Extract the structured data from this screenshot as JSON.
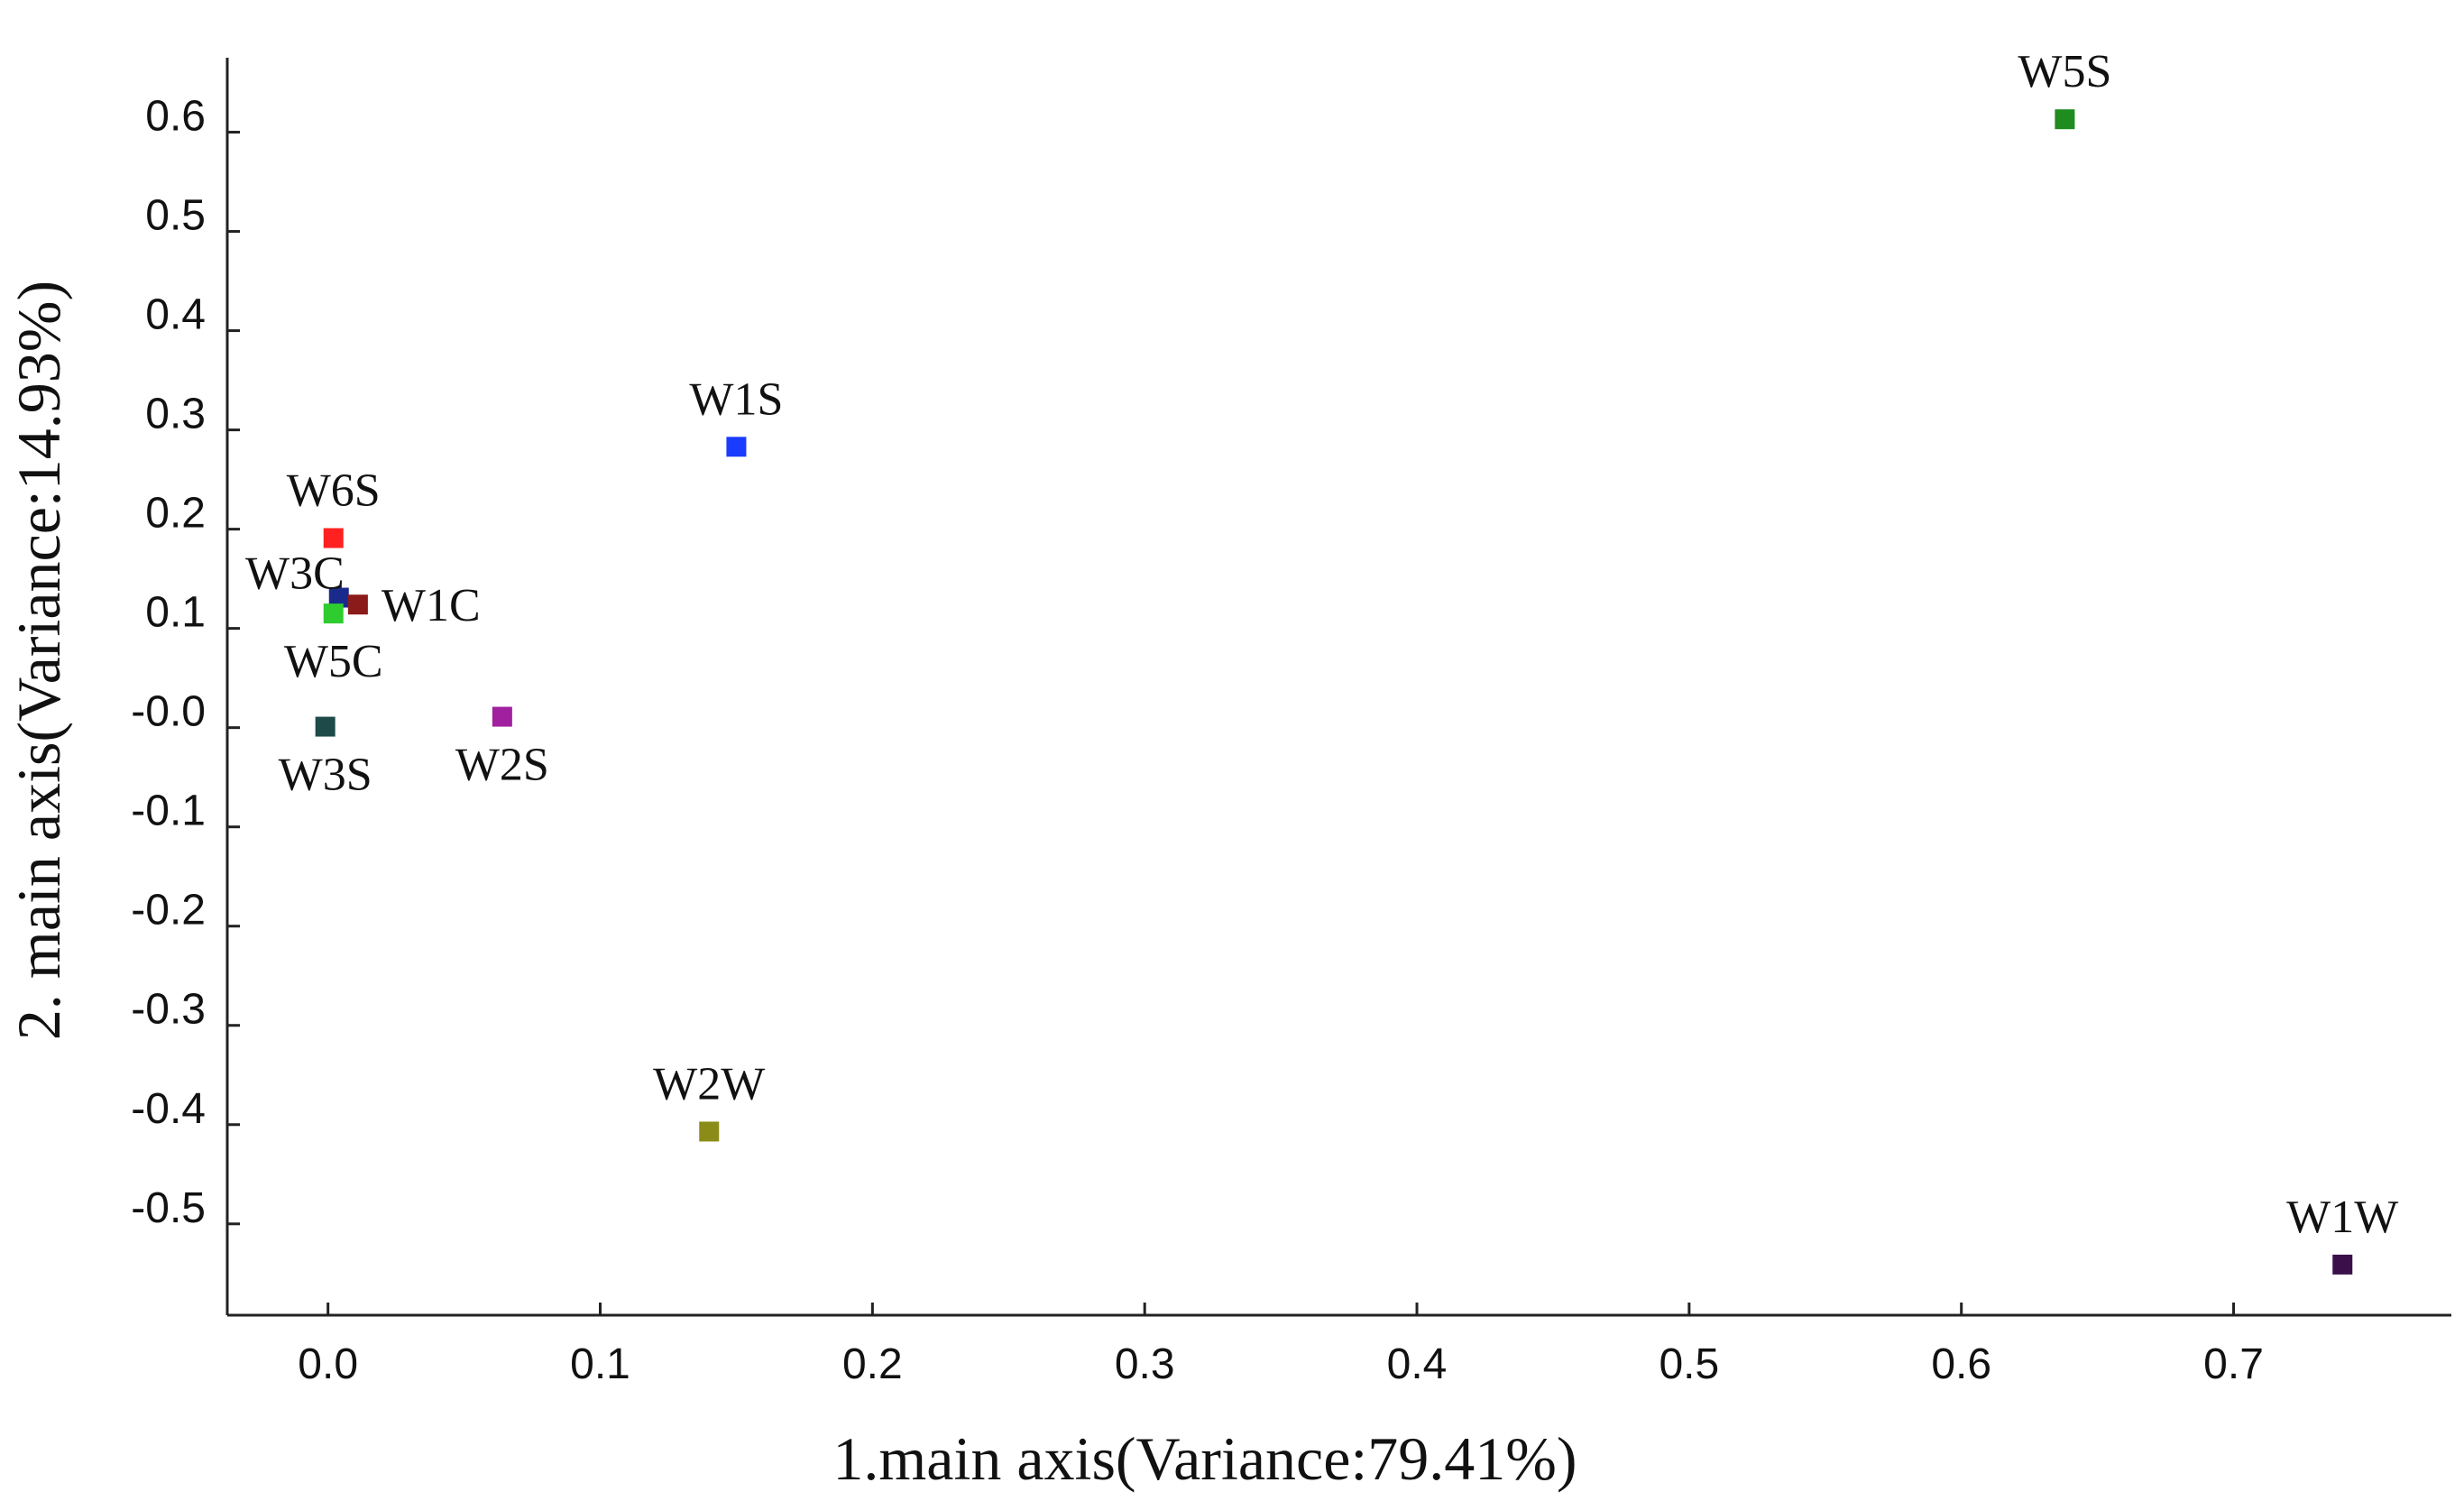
{
  "chart_data": {
    "type": "scatter",
    "title": "",
    "xlabel": "1.main axis(Variance:79.41%)",
    "ylabel": "2. main axis(Variance:14.93%)",
    "xlim": [
      -0.037,
      0.78
    ],
    "ylim": [
      -0.592,
      0.675
    ],
    "x_ticks": [
      0.0,
      0.1,
      0.2,
      0.3,
      0.4,
      0.5,
      0.6,
      0.7
    ],
    "x_tick_labels": [
      "0.0",
      "0.1",
      "0.2",
      "0.3",
      "0.4",
      "0.5",
      "0.6",
      "0.7"
    ],
    "y_ticks": [
      0.6,
      0.5,
      0.4,
      0.3,
      0.2,
      0.1,
      0.0,
      -0.1,
      -0.2,
      -0.3,
      -0.4,
      -0.5
    ],
    "y_tick_labels": [
      "0.6",
      "0.5",
      "0.4",
      "0.3",
      "0.2",
      "0.1",
      "-0.0",
      "-0.1",
      "-0.2",
      "-0.3",
      "-0.4",
      "-0.5"
    ],
    "grid": false,
    "legend": "none",
    "points": [
      {
        "label": "W5S",
        "x": 0.638,
        "y": 0.613,
        "color": "#1e8c1e",
        "label_pos": "above"
      },
      {
        "label": "W1S",
        "x": 0.15,
        "y": 0.283,
        "color": "#1a3cff",
        "label_pos": "above"
      },
      {
        "label": "W6S",
        "x": 0.002,
        "y": 0.191,
        "color": "#ff2020",
        "label_pos": "above"
      },
      {
        "label": "W3C",
        "x": 0.004,
        "y": 0.131,
        "color": "#1a2a8c",
        "label_pos": "left"
      },
      {
        "label": "W1C",
        "x": 0.011,
        "y": 0.124,
        "color": "#8b1a1a",
        "label_pos": "right"
      },
      {
        "label": "W5C",
        "x": 0.002,
        "y": 0.115,
        "color": "#2ecc2e",
        "label_pos": "below"
      },
      {
        "label": "W2S",
        "x": 0.064,
        "y": 0.011,
        "color": "#a020a0",
        "label_pos": "below"
      },
      {
        "label": "W3S",
        "x": -0.001,
        "y": 0.001,
        "color": "#1e4a4a",
        "label_pos": "below"
      },
      {
        "label": "W2W",
        "x": 0.14,
        "y": -0.407,
        "color": "#8b8b1a",
        "label_pos": "above"
      },
      {
        "label": "W1W",
        "x": 0.74,
        "y": -0.541,
        "color": "#3a0f4a",
        "label_pos": "above"
      }
    ]
  }
}
